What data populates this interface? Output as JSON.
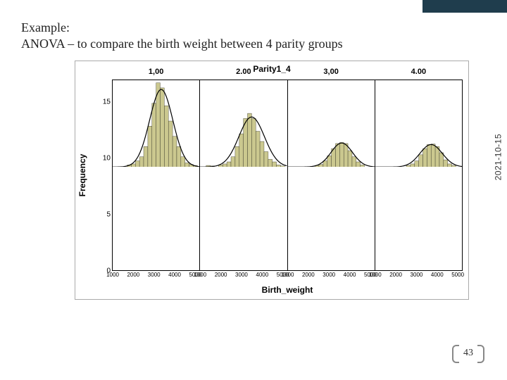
{
  "slide": {
    "title_line1": "Example:",
    "title_line2": "ANOVA – to compare the birth weight between 4 parity groups",
    "date": "2021-10-15",
    "page_number": "43"
  },
  "chart": {
    "type": "panel-histogram",
    "title": "Parity1_4",
    "x_label": "Birth_weight",
    "y_label": "Frequency",
    "ymax": 17,
    "y_ticks": [
      0,
      5,
      10,
      15
    ],
    "x_min": 1000,
    "x_max": 5200,
    "x_tick_labels": [
      "1000",
      "2000",
      "3000",
      "4000",
      "5000"
    ],
    "bar_color": "#cbc88f",
    "bar_border": "#000000",
    "curve_color": "#000000",
    "curve_width": 1.2,
    "background": "#ffffff",
    "panel_border": "#000000",
    "panels": [
      {
        "header": "1,00",
        "bars": [
          {
            "x": 1800,
            "y": 0.4
          },
          {
            "x": 2000,
            "y": 0.6
          },
          {
            "x": 2200,
            "y": 1.2
          },
          {
            "x": 2400,
            "y": 2.0
          },
          {
            "x": 2600,
            "y": 4.0
          },
          {
            "x": 2800,
            "y": 8.0
          },
          {
            "x": 3000,
            "y": 12.5
          },
          {
            "x": 3200,
            "y": 16.5
          },
          {
            "x": 3400,
            "y": 15.5
          },
          {
            "x": 3600,
            "y": 12.0
          },
          {
            "x": 3800,
            "y": 9.0
          },
          {
            "x": 4000,
            "y": 6.0
          },
          {
            "x": 4200,
            "y": 4.0
          },
          {
            "x": 4400,
            "y": 2.0
          },
          {
            "x": 4600,
            "y": 0.8
          },
          {
            "x": 4800,
            "y": 0.5
          },
          {
            "x": 5000,
            "y": 0.3
          }
        ],
        "curve": {
          "mean": 3350,
          "sd": 560,
          "peak": 15.2
        }
      },
      {
        "header": "2.00",
        "bars": [
          {
            "x": 1400,
            "y": 0.3
          },
          {
            "x": 1600,
            "y": 0.2
          },
          {
            "x": 2000,
            "y": 0.4
          },
          {
            "x": 2200,
            "y": 0.6
          },
          {
            "x": 2400,
            "y": 1.0
          },
          {
            "x": 2600,
            "y": 2.0
          },
          {
            "x": 2800,
            "y": 4.0
          },
          {
            "x": 3000,
            "y": 6.5
          },
          {
            "x": 3200,
            "y": 9.5
          },
          {
            "x": 3400,
            "y": 10.5
          },
          {
            "x": 3600,
            "y": 9.5
          },
          {
            "x": 3800,
            "y": 7.0
          },
          {
            "x": 4000,
            "y": 5.0
          },
          {
            "x": 4200,
            "y": 3.0
          },
          {
            "x": 4400,
            "y": 1.5
          },
          {
            "x": 4600,
            "y": 1.0
          },
          {
            "x": 4800,
            "y": 0.4
          },
          {
            "x": 5000,
            "y": 0.2
          }
        ],
        "curve": {
          "mean": 3500,
          "sd": 620,
          "peak": 9.8
        }
      },
      {
        "header": "3,00",
        "bars": [
          {
            "x": 2400,
            "y": 0.3
          },
          {
            "x": 2600,
            "y": 0.5
          },
          {
            "x": 2800,
            "y": 1.2
          },
          {
            "x": 3000,
            "y": 2.2
          },
          {
            "x": 3200,
            "y": 3.6
          },
          {
            "x": 3400,
            "y": 4.6
          },
          {
            "x": 3600,
            "y": 4.8
          },
          {
            "x": 3800,
            "y": 4.6
          },
          {
            "x": 4000,
            "y": 3.2
          },
          {
            "x": 4200,
            "y": 2.0
          },
          {
            "x": 4400,
            "y": 1.0
          },
          {
            "x": 4600,
            "y": 0.4
          }
        ],
        "curve": {
          "mean": 3600,
          "sd": 520,
          "peak": 4.7
        }
      },
      {
        "header": "4.00",
        "bars": [
          {
            "x": 2600,
            "y": 0.3
          },
          {
            "x": 2800,
            "y": 0.6
          },
          {
            "x": 3000,
            "y": 1.2
          },
          {
            "x": 3200,
            "y": 2.4
          },
          {
            "x": 3400,
            "y": 3.6
          },
          {
            "x": 3600,
            "y": 4.4
          },
          {
            "x": 3800,
            "y": 4.5
          },
          {
            "x": 4000,
            "y": 4.0
          },
          {
            "x": 4200,
            "y": 2.8
          },
          {
            "x": 4400,
            "y": 1.4
          },
          {
            "x": 4600,
            "y": 0.6
          },
          {
            "x": 4800,
            "y": 0.3
          }
        ],
        "curve": {
          "mean": 3700,
          "sd": 540,
          "peak": 4.4
        }
      }
    ]
  }
}
